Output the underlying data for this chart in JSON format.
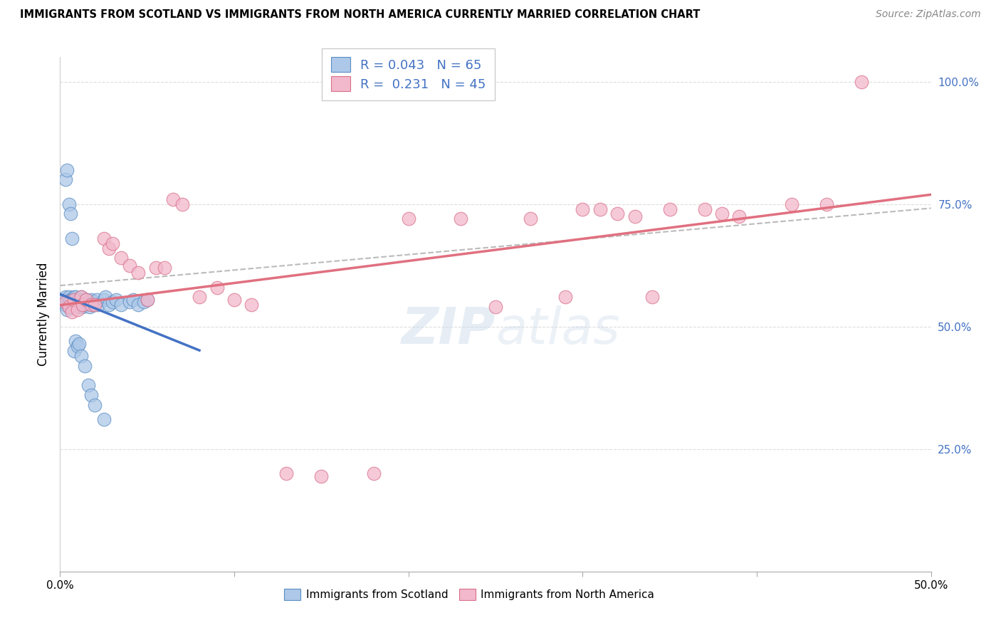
{
  "title": "IMMIGRANTS FROM SCOTLAND VS IMMIGRANTS FROM NORTH AMERICA CURRENTLY MARRIED CORRELATION CHART",
  "source": "Source: ZipAtlas.com",
  "ylabel": "Currently Married",
  "xlim": [
    0.0,
    0.5
  ],
  "ylim": [
    0.0,
    1.05
  ],
  "ytick_vals": [
    0.25,
    0.5,
    0.75,
    1.0
  ],
  "ytick_labels": [
    "25.0%",
    "50.0%",
    "75.0%",
    "100.0%"
  ],
  "xtick_vals": [
    0.0,
    0.1,
    0.2,
    0.3,
    0.4,
    0.5
  ],
  "legend_R_scotland": "0.043",
  "legend_N_scotland": "65",
  "legend_R_northamerica": "0.231",
  "legend_N_northamerica": "45",
  "color_scotland_fill": "#adc8e8",
  "color_scotland_edge": "#5b8ec4",
  "color_northamerica_fill": "#f2b8cc",
  "color_northamerica_edge": "#d9708a",
  "trendline_scotland_color": "#4472c4",
  "trendline_northamerica_color": "#e07080",
  "trendline_dashed_color": "#aaaaaa",
  "grid_color": "#dddddd",
  "right_tick_color": "#4472c4",
  "watermark_color": "#c8d8e8",
  "scotland_x": [
    0.002,
    0.003,
    0.003,
    0.004,
    0.004,
    0.005,
    0.005,
    0.005,
    0.006,
    0.006,
    0.007,
    0.007,
    0.008,
    0.008,
    0.008,
    0.009,
    0.009,
    0.009,
    0.01,
    0.01,
    0.01,
    0.011,
    0.011,
    0.012,
    0.012,
    0.013,
    0.013,
    0.014,
    0.014,
    0.015,
    0.015,
    0.016,
    0.017,
    0.018,
    0.019,
    0.02,
    0.02,
    0.021,
    0.022,
    0.025,
    0.026,
    0.028,
    0.03,
    0.032,
    0.035,
    0.04,
    0.042,
    0.045,
    0.048,
    0.05,
    0.003,
    0.004,
    0.005,
    0.006,
    0.007,
    0.008,
    0.009,
    0.01,
    0.011,
    0.012,
    0.014,
    0.016,
    0.018,
    0.02,
    0.025
  ],
  "scotland_y": [
    0.555,
    0.545,
    0.56,
    0.535,
    0.55,
    0.555,
    0.54,
    0.56,
    0.545,
    0.555,
    0.54,
    0.555,
    0.555,
    0.545,
    0.56,
    0.54,
    0.555,
    0.56,
    0.545,
    0.55,
    0.555,
    0.54,
    0.555,
    0.545,
    0.56,
    0.55,
    0.54,
    0.555,
    0.545,
    0.55,
    0.555,
    0.545,
    0.54,
    0.555,
    0.545,
    0.55,
    0.545,
    0.555,
    0.545,
    0.555,
    0.56,
    0.545,
    0.55,
    0.555,
    0.545,
    0.55,
    0.555,
    0.545,
    0.55,
    0.555,
    0.8,
    0.82,
    0.75,
    0.73,
    0.68,
    0.45,
    0.47,
    0.46,
    0.465,
    0.44,
    0.42,
    0.38,
    0.36,
    0.34,
    0.31
  ],
  "northamerica_x": [
    0.003,
    0.005,
    0.007,
    0.008,
    0.01,
    0.012,
    0.013,
    0.015,
    0.018,
    0.02,
    0.025,
    0.028,
    0.03,
    0.035,
    0.04,
    0.045,
    0.05,
    0.055,
    0.06,
    0.065,
    0.07,
    0.08,
    0.09,
    0.1,
    0.11,
    0.13,
    0.15,
    0.18,
    0.2,
    0.23,
    0.25,
    0.27,
    0.29,
    0.3,
    0.31,
    0.32,
    0.33,
    0.34,
    0.35,
    0.37,
    0.38,
    0.39,
    0.42,
    0.44,
    0.46
  ],
  "northamerica_y": [
    0.55,
    0.54,
    0.53,
    0.555,
    0.535,
    0.56,
    0.545,
    0.555,
    0.545,
    0.545,
    0.68,
    0.66,
    0.67,
    0.64,
    0.625,
    0.61,
    0.555,
    0.62,
    0.62,
    0.76,
    0.75,
    0.56,
    0.58,
    0.555,
    0.545,
    0.2,
    0.195,
    0.2,
    0.72,
    0.72,
    0.54,
    0.72,
    0.56,
    0.74,
    0.74,
    0.73,
    0.725,
    0.56,
    0.74,
    0.74,
    0.73,
    0.725,
    0.75,
    0.75,
    1.0
  ]
}
